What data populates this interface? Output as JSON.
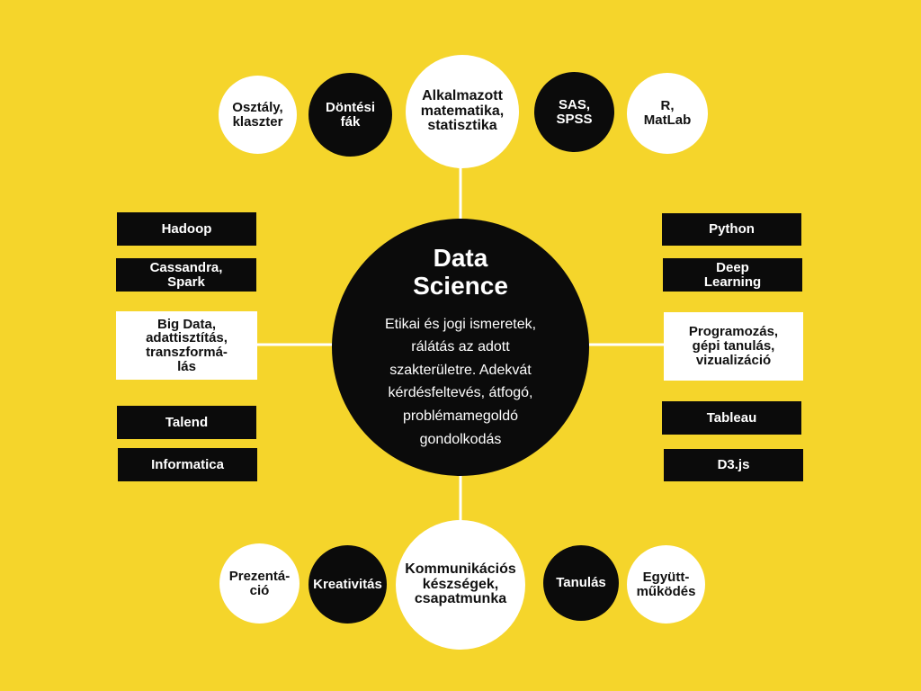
{
  "center": {
    "title_lines": [
      "Data",
      "Science"
    ],
    "body_lines": [
      "Etikai és jogi ismeretek,",
      "rálátás az adott",
      "szakterületre. Adekvát",
      "kérdésfeltevés, átfogó,",
      "problémamegoldó",
      "gondolkodás"
    ]
  },
  "top": {
    "main": [
      "Alkalmazott",
      "matematika,",
      "statisztika"
    ],
    "left_outer": [
      "Osztály,",
      "klaszter"
    ],
    "left_inner": [
      "Döntési",
      "fák"
    ],
    "right_inner": [
      "SAS,",
      "SPSS"
    ],
    "right_outer": [
      "R,",
      "MatLab"
    ]
  },
  "left": {
    "main": [
      "Big Data,",
      "adattisztítás,",
      "transzformá-",
      "lás"
    ],
    "boxes": [
      [
        "Hadoop"
      ],
      [
        "Cassandra,",
        "Spark"
      ],
      [
        "Talend"
      ],
      [
        "Informatica"
      ]
    ]
  },
  "right": {
    "main": [
      "Programozás,",
      "gépi tanulás,",
      "vizualizáció"
    ],
    "boxes": [
      [
        "Python"
      ],
      [
        "Deep",
        "Learning"
      ],
      [
        "Tableau"
      ],
      [
        "D3.js"
      ]
    ]
  },
  "bottom": {
    "main": [
      "Kommunikációs",
      "készségek,",
      "csapatmunka"
    ],
    "left_outer": [
      "Prezentá-",
      "ció"
    ],
    "left_inner": [
      "Kreativitás"
    ],
    "right_inner": [
      "Tanulás"
    ],
    "right_outer": [
      "Együtt-",
      "működés"
    ]
  },
  "colors": {
    "background": "#f5d52b",
    "dark": "#0b0b0b",
    "light": "#ffffff"
  }
}
